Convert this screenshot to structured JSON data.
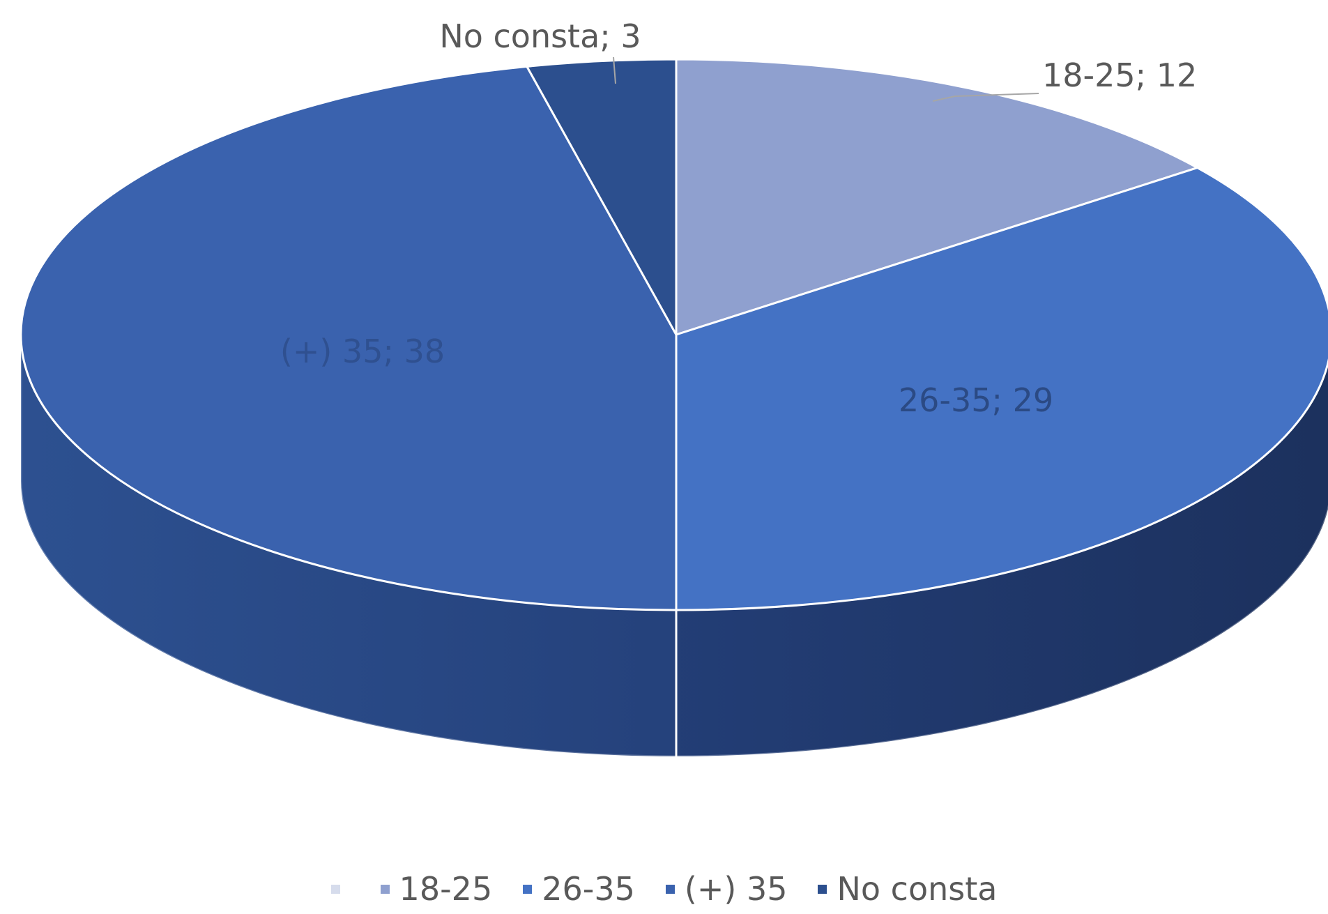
{
  "chart_data": {
    "type": "pie",
    "style": "3d",
    "categories": [
      "18-25",
      "26-35",
      "(+) 35",
      "No consta"
    ],
    "values": [
      12,
      29,
      38,
      3
    ],
    "data_labels": [
      "18-25; 12",
      "26-35; 29",
      "(+) 35; 38",
      "No consta; 3"
    ],
    "legend_position": "bottom",
    "colors": [
      "#8FA0CF",
      "#4472C4",
      "#3A62AE",
      "#2C4F8E"
    ],
    "legend": {
      "items": [
        {
          "label": "",
          "color": "#D6DCEC"
        },
        {
          "label": "18-25",
          "color": "#8FA0CF"
        },
        {
          "label": "26-35",
          "color": "#4472C4"
        },
        {
          "label": "(+) 35",
          "color": "#3A62AE"
        },
        {
          "label": "No consta",
          "color": "#2C4F8E"
        }
      ]
    }
  }
}
